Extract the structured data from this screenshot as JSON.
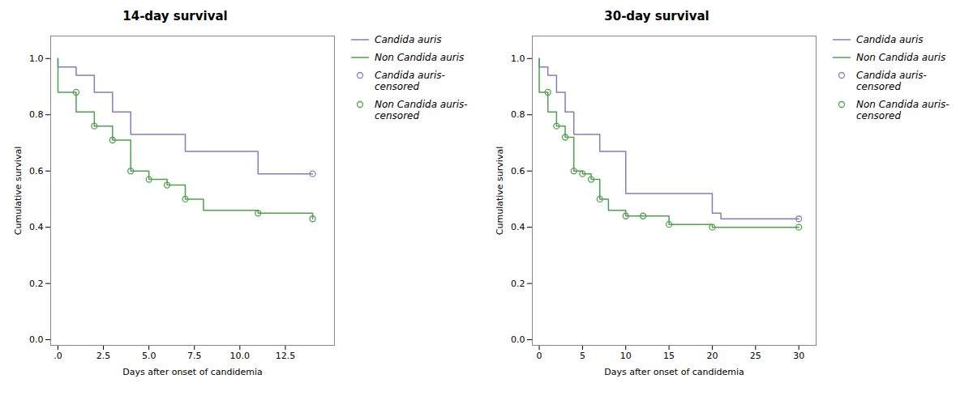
{
  "chart_data": [
    {
      "type": "line",
      "title": "14-day survival",
      "x_label": "Days after onset of candidemia",
      "y_label": "Cumulative survival",
      "xlim": [
        -0.4,
        15.2
      ],
      "ylim": [
        -0.02,
        1.08
      ],
      "xticks": [
        {
          "value": 0,
          "label": ".0"
        },
        2.5,
        {
          "value": 5.0,
          "label": "5.0"
        },
        7.5,
        {
          "value": 10.0,
          "label": "10.0"
        },
        12.5
      ],
      "yticks": [
        {
          "value": 0.0,
          "label": "0.0"
        },
        0.2,
        0.4,
        0.6,
        0.8,
        {
          "value": 1.0,
          "label": "1.0"
        }
      ],
      "grid": false,
      "legend": "right",
      "series": [
        {
          "name": "Candida auris",
          "type": "step",
          "color": "#8080c0",
          "x": [
            0,
            0,
            1,
            1,
            2,
            2,
            3,
            3,
            4,
            4,
            5,
            5,
            7,
            7,
            8,
            8,
            11,
            11,
            14
          ],
          "values": [
            1.0,
            0.97,
            0.97,
            0.94,
            0.94,
            0.88,
            0.88,
            0.81,
            0.81,
            0.73,
            0.73,
            0.73,
            0.73,
            0.67,
            0.67,
            0.67,
            0.67,
            0.59,
            0.59
          ]
        },
        {
          "name": "Non Candida auris",
          "type": "step",
          "color": "#50a050",
          "x": [
            0,
            0,
            1,
            1,
            2,
            2,
            3,
            3,
            4,
            4,
            5,
            5,
            6,
            6,
            7,
            7,
            8,
            8,
            11,
            11,
            14,
            14
          ],
          "values": [
            1.0,
            0.88,
            0.88,
            0.81,
            0.81,
            0.76,
            0.76,
            0.71,
            0.71,
            0.6,
            0.6,
            0.57,
            0.57,
            0.55,
            0.55,
            0.5,
            0.5,
            0.46,
            0.46,
            0.45,
            0.45,
            0.43
          ]
        },
        {
          "name": "Candida auris-censored",
          "type": "scatter",
          "marker": "circle",
          "color": "#8080c0",
          "x": [
            14.0
          ],
          "values": [
            0.59
          ]
        },
        {
          "name": "Non Candida auris-\ncensored",
          "type": "scatter",
          "marker": "circle",
          "color": "#50a050",
          "x": [
            1.0,
            2.0,
            3.0,
            4.0,
            5.0,
            6.0,
            7.0,
            11.0,
            14.0
          ],
          "values": [
            0.88,
            0.76,
            0.71,
            0.6,
            0.57,
            0.55,
            0.5,
            0.45,
            0.43
          ]
        }
      ]
    },
    {
      "type": "line",
      "title": "30-day survival",
      "x_label": "Days after onset of candidemia",
      "y_label": "Cumulative survival",
      "xlim": [
        -0.8,
        32
      ],
      "ylim": [
        -0.02,
        1.08
      ],
      "xticks": [
        0,
        5,
        10,
        15,
        20,
        25,
        30
      ],
      "yticks": [
        {
          "value": 0.0,
          "label": "0.0"
        },
        0.2,
        0.4,
        0.6,
        0.8,
        {
          "value": 1.0,
          "label": "1.0"
        }
      ],
      "grid": false,
      "legend": "right",
      "series": [
        {
          "name": "Candida auris",
          "type": "step",
          "color": "#8080c0",
          "x": [
            0,
            0,
            1,
            1,
            2,
            2,
            3,
            3,
            4,
            4,
            5,
            5,
            7,
            7,
            8,
            8,
            10,
            10,
            14,
            14,
            20,
            20,
            21,
            21,
            30
          ],
          "values": [
            1.0,
            0.97,
            0.97,
            0.94,
            0.94,
            0.88,
            0.88,
            0.81,
            0.81,
            0.73,
            0.73,
            0.73,
            0.73,
            0.67,
            0.67,
            0.67,
            0.67,
            0.52,
            0.52,
            0.52,
            0.52,
            0.45,
            0.45,
            0.43,
            0.43
          ]
        },
        {
          "name": "Non Candida auris",
          "type": "step",
          "color": "#50a050",
          "x": [
            0,
            0,
            1,
            1,
            2,
            2,
            3,
            3,
            4,
            4,
            5,
            5,
            6,
            6,
            7,
            7,
            8,
            8,
            10,
            10,
            12,
            12,
            15,
            15,
            20,
            20,
            30
          ],
          "values": [
            1.0,
            0.88,
            0.88,
            0.81,
            0.81,
            0.76,
            0.76,
            0.72,
            0.72,
            0.6,
            0.6,
            0.59,
            0.59,
            0.57,
            0.57,
            0.5,
            0.5,
            0.46,
            0.46,
            0.44,
            0.44,
            0.44,
            0.44,
            0.41,
            0.41,
            0.4,
            0.4
          ]
        },
        {
          "name": "Candida auris-censored",
          "type": "scatter",
          "marker": "circle",
          "color": "#8080c0",
          "x": [
            30.0
          ],
          "values": [
            0.43
          ]
        },
        {
          "name": "Non Candida auris-\ncensored",
          "type": "scatter",
          "marker": "circle",
          "color": "#50a050",
          "x": [
            1.0,
            2.0,
            3.0,
            4.0,
            5.0,
            6.0,
            7.0,
            10.0,
            12.0,
            15.0,
            20.0,
            30.0
          ],
          "values": [
            0.88,
            0.76,
            0.72,
            0.6,
            0.59,
            0.57,
            0.5,
            0.44,
            0.44,
            0.41,
            0.4,
            0.4
          ]
        }
      ]
    }
  ]
}
